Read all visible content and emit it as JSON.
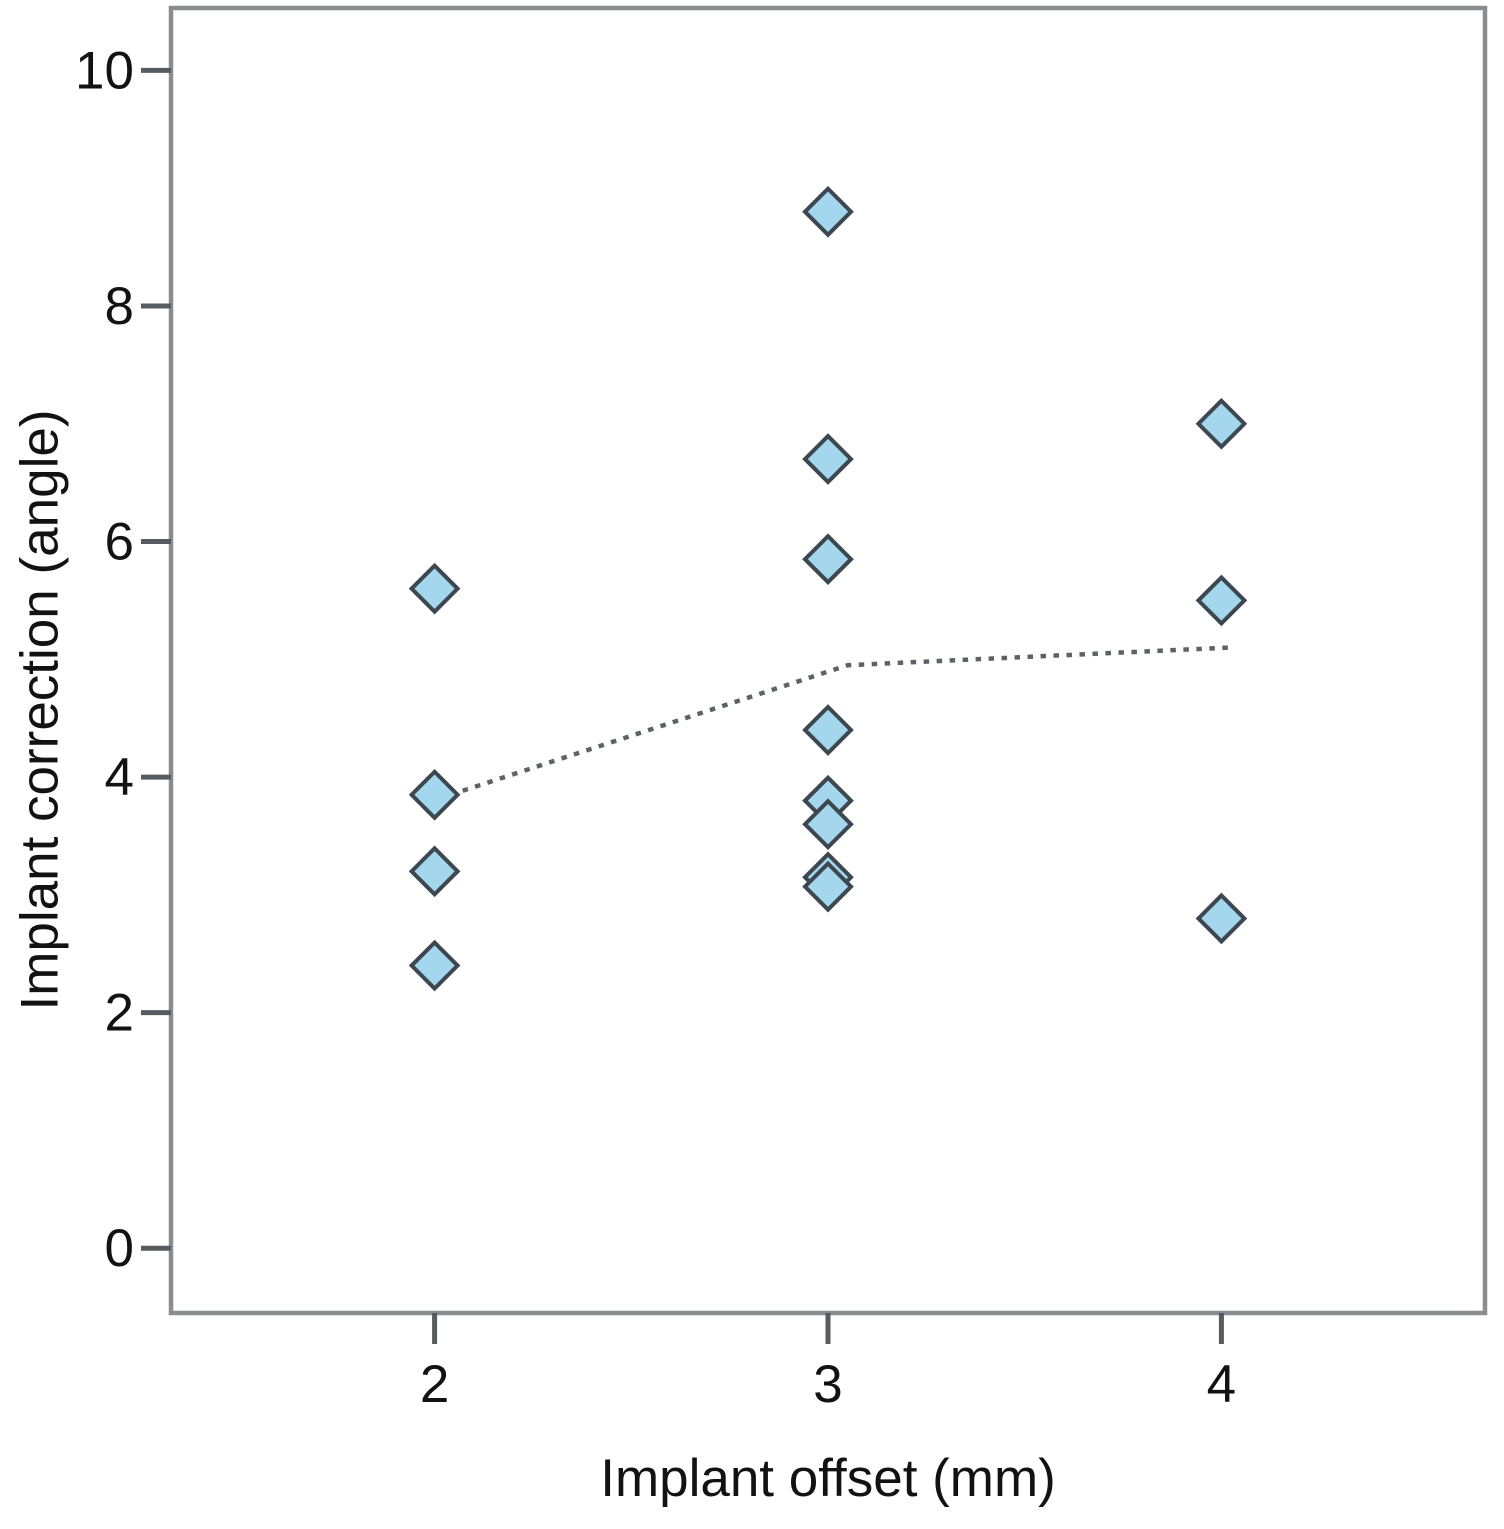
{
  "chart_data": {
    "type": "scatter",
    "title": "",
    "xlabel": "Implant offset (mm)",
    "ylabel": "Implant correction (angle)",
    "x_ticks": [
      2,
      3,
      4
    ],
    "y_ticks": [
      0,
      2,
      4,
      6,
      8,
      10
    ],
    "xlim": [
      1.33,
      4.67
    ],
    "ylim": [
      -0.55,
      10.53
    ],
    "grid": false,
    "legend": "none",
    "points": [
      {
        "x": 2,
        "y": 5.6
      },
      {
        "x": 2,
        "y": 3.85
      },
      {
        "x": 2,
        "y": 3.2
      },
      {
        "x": 2,
        "y": 2.4
      },
      {
        "x": 3,
        "y": 8.8
      },
      {
        "x": 3,
        "y": 6.7
      },
      {
        "x": 3,
        "y": 5.85
      },
      {
        "x": 3,
        "y": 4.4
      },
      {
        "x": 3,
        "y": 3.8
      },
      {
        "x": 3,
        "y": 3.6
      },
      {
        "x": 3,
        "y": 3.15
      },
      {
        "x": 3,
        "y": 3.07
      },
      {
        "x": 4,
        "y": 7.0
      },
      {
        "x": 4,
        "y": 5.5
      },
      {
        "x": 4,
        "y": 2.8
      }
    ],
    "fit_line": {
      "style": "dotted",
      "points": [
        [
          2.04,
          3.85
        ],
        [
          3.05,
          4.95
        ],
        [
          4.02,
          5.1
        ]
      ]
    },
    "marker": {
      "shape": "diamond",
      "fill": "#a4d6ee",
      "stroke": "#3d4750"
    },
    "colors": {
      "frame": "#878d91",
      "tick": "#565c60",
      "fit_line": "#5d6266",
      "text": "#121212",
      "background": "#ffffff"
    }
  }
}
